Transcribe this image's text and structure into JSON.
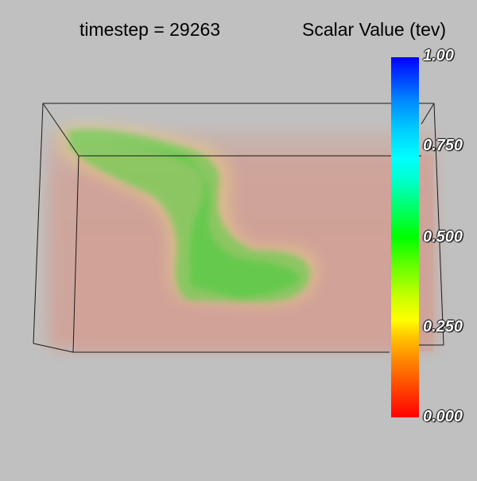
{
  "header": {
    "timestep_label": "timestep = 29263",
    "scalar_title": "Scalar Value (tev)"
  },
  "colorbar": {
    "ticks": [
      "1.00",
      "0.750",
      "0.500",
      "0.250",
      "0.000"
    ],
    "colors": {
      "min": "#ff0000",
      "low": "#ffff00",
      "mid": "#00ff00",
      "high": "#00ffff",
      "max": "#0000ff"
    }
  },
  "volume": {
    "background_color": "#c0c0c0",
    "fill_color": "#d4a398",
    "plume_color": "#4cd040"
  }
}
